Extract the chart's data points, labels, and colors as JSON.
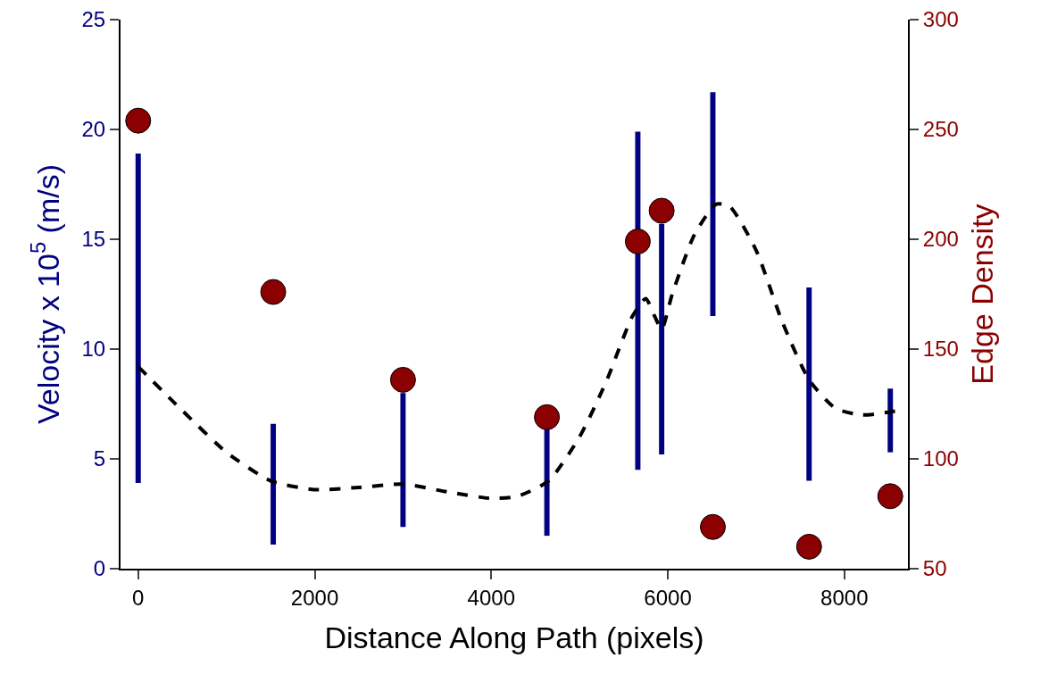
{
  "chart_data": {
    "type": "scatter",
    "xlabel": "Distance Along Path (pixels)",
    "ylabel": "Velocity x 10$^{5}$ (m/s)",
    "y2label": "Edge Density",
    "xlim": [
      -200,
      8720
    ],
    "xticks": [
      0,
      2000,
      4000,
      6000,
      8000
    ],
    "ylim": [
      0,
      25
    ],
    "yticks": [
      0,
      5,
      10,
      15,
      20,
      25
    ],
    "y2lim": [
      50,
      300
    ],
    "y2ticks": [
      50,
      100,
      150,
      200,
      250,
      300
    ],
    "grid": false,
    "series": [
      {
        "type": "bar",
        "color": "#000080",
        "x": [
          0,
          1530,
          3000,
          4630,
          5660,
          5930,
          6510,
          7600,
          8520
        ],
        "base": [
          3.9,
          1.1,
          1.9,
          1.5,
          4.5,
          5.2,
          11.5,
          4.0,
          5.3
        ],
        "values": [
          15.0,
          5.5,
          6.1,
          4.9,
          15.4,
          10.5,
          10.2,
          8.8,
          2.9
        ]
      },
      {
        "marker": "circle",
        "axis": "y2",
        "color": "#8b0000",
        "x": [
          0,
          1530,
          3000,
          4630,
          5660,
          5930,
          6510,
          7600,
          8520
        ],
        "values": [
          254,
          176,
          136,
          119,
          199,
          213,
          69,
          60,
          83
        ]
      },
      {
        "type": "line",
        "marker": "none",
        "line_style": "dashed",
        "color": "#000000",
        "x": [
          0,
          500,
          1000,
          1500,
          2000,
          2500,
          3000,
          3500,
          4000,
          4300,
          4650,
          5000,
          5300,
          5600,
          5750,
          5850,
          5930,
          6050,
          6300,
          6550,
          6700,
          7000,
          7300,
          7600,
          7900,
          8200,
          8620
        ],
        "values": [
          9.2,
          7.2,
          5.3,
          4.0,
          3.6,
          3.7,
          3.85,
          3.5,
          3.2,
          3.3,
          4.0,
          6.0,
          8.5,
          11.5,
          12.3,
          11.5,
          10.9,
          12.5,
          15.2,
          16.6,
          16.5,
          14.5,
          11.2,
          8.6,
          7.3,
          7.0,
          7.2
        ]
      }
    ]
  }
}
